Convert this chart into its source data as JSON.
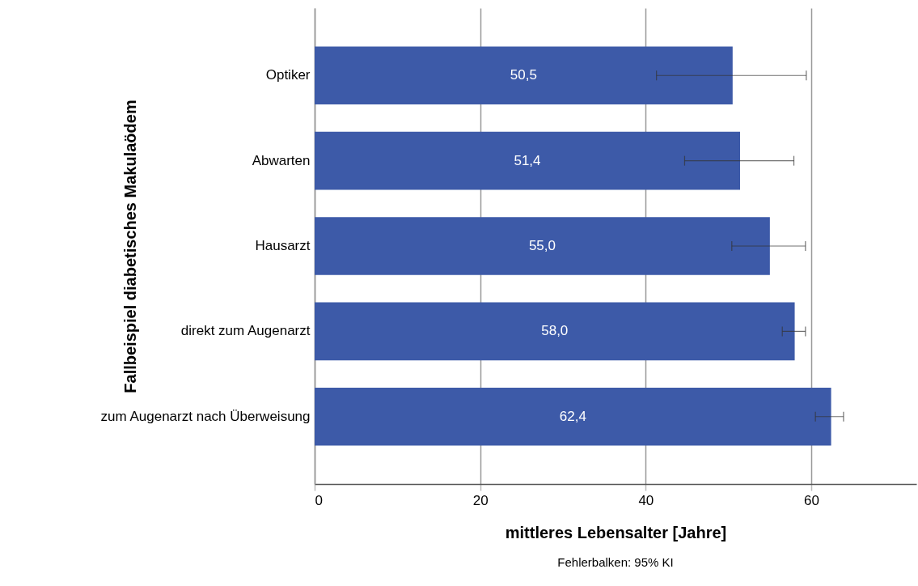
{
  "chart_data": {
    "type": "bar",
    "orientation": "horizontal",
    "xlabel": "mittleres Lebensalter [Jahre]",
    "ylabel": "Fallbeispiel diabetisches Makulaödem",
    "categories": [
      "Optiker",
      "Abwarten",
      "Hausarzt",
      "direkt zum Augenarzt",
      "zum Augenarzt nach Überweisung"
    ],
    "values": [
      50.5,
      51.4,
      55.0,
      58.0,
      62.4
    ],
    "value_labels": [
      "50,5",
      "51,4",
      "55,0",
      "58,0",
      "62,4"
    ],
    "errors": [
      [
        41.3,
        59.4
      ],
      [
        44.7,
        57.9
      ],
      [
        50.4,
        59.3
      ],
      [
        56.5,
        59.3
      ],
      [
        60.5,
        63.9
      ]
    ],
    "color": "#3d5aa8",
    "xlim": [
      0,
      72.7
    ],
    "xticks": [
      0,
      20,
      40,
      60
    ],
    "grid": "x",
    "annotations": [
      "Fehlerbalken: 95% KI"
    ]
  }
}
